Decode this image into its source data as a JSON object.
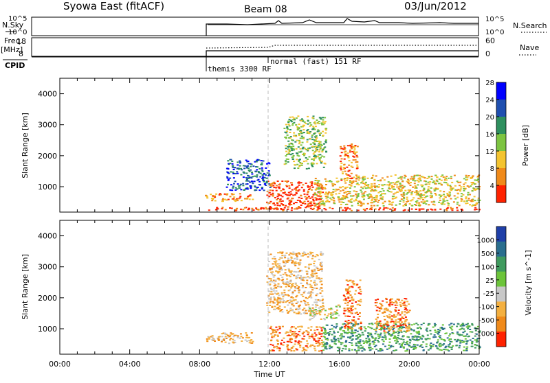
{
  "header": {
    "title": "Syowa East (fitACF)",
    "beam": "Beam 08",
    "date": "03/Jun/2012"
  },
  "status_panel": {
    "nsky_label": "N.Sky",
    "nsky_ticks": [
      "10^5",
      "10^0"
    ],
    "nsearch_label": "N.Search",
    "nsearch_ticks": [
      "10^5",
      "10^0"
    ],
    "freq_label": "Freq.",
    "freq_unit": "[MHz]",
    "freq_ticks": [
      "18",
      "8"
    ],
    "nave_label": "Nave",
    "nave_ticks": [
      "60",
      "0"
    ],
    "cpid_label": "CPID",
    "cpid_programs": [
      "themis 3300 RF",
      "normal (fast) 151 RF"
    ]
  },
  "chart_data": [
    {
      "type": "heatmap",
      "name": "power",
      "ylabel": "Slant Range [km]",
      "yticks": [
        "1000",
        "2000",
        "3000",
        "4000"
      ],
      "ylim": [
        180,
        4500
      ],
      "xlim": [
        0,
        24
      ],
      "colorbar_label": "Power [dB]",
      "colorbar_ticks": [
        "4",
        "8",
        "12",
        "16",
        "20",
        "24",
        "28"
      ],
      "colorbar_colors": [
        "#0000ff",
        "#1f4fb0",
        "#2e8f5e",
        "#7dc441",
        "#f4c430",
        "#f08a1a",
        "#ff2200"
      ],
      "regions": [
        {
          "x": [
            8.3,
            24
          ],
          "y": [
            250,
            350
          ],
          "level": 6
        },
        {
          "x": [
            8.3,
            11.0
          ],
          "y": [
            550,
            800
          ],
          "level": 5
        },
        {
          "x": [
            11.8,
            15.0
          ],
          "y": [
            300,
            1200
          ],
          "level": 6
        },
        {
          "x": [
            14.5,
            17.0
          ],
          "y": [
            400,
            1300
          ],
          "level": 4
        },
        {
          "x": [
            12.8,
            15.2
          ],
          "y": [
            1600,
            3300
          ],
          "level": 3
        },
        {
          "x": [
            16.0,
            17.0
          ],
          "y": [
            1200,
            2400
          ],
          "level": 5
        },
        {
          "x": [
            17.0,
            24.0
          ],
          "y": [
            400,
            1400
          ],
          "level": 4
        },
        {
          "x": [
            9.5,
            12.0
          ],
          "y": [
            900,
            1900
          ],
          "level": 1
        }
      ]
    },
    {
      "type": "heatmap",
      "name": "velocity",
      "xlabel": "Time UT",
      "xticks": [
        "00:00",
        "04:00",
        "08:00",
        "12:00",
        "16:00",
        "20:00",
        "00:00"
      ],
      "ylabel": "Slant Range [km]",
      "yticks": [
        "1000",
        "2000",
        "3000",
        "4000"
      ],
      "ylim": [
        180,
        4500
      ],
      "xlim": [
        0,
        24
      ],
      "colorbar_label": "Velocity [m s^-1]",
      "colorbar_ticks": [
        "1000",
        "500",
        "100",
        "25",
        "-25",
        "-100",
        "-500",
        "-1000"
      ],
      "colorbar_colors": [
        "#1f3fa8",
        "#2a6e8e",
        "#3f9a5e",
        "#6cc43a",
        "#c8c8c8",
        "#f4b040",
        "#f08a1a",
        "#ff2200"
      ],
      "regions": [
        {
          "x": [
            8.3,
            11.0
          ],
          "y": [
            550,
            900
          ],
          "level": 5
        },
        {
          "x": [
            11.8,
            15.0
          ],
          "y": [
            1500,
            3500
          ],
          "level": 5
        },
        {
          "x": [
            12.0,
            15.0
          ],
          "y": [
            300,
            1100
          ],
          "level": 6
        },
        {
          "x": [
            15.0,
            24.0
          ],
          "y": [
            300,
            1200
          ],
          "level": 2
        },
        {
          "x": [
            16.2,
            17.2
          ],
          "y": [
            1000,
            2600
          ],
          "level": 6
        },
        {
          "x": [
            18.0,
            20.0
          ],
          "y": [
            900,
            2000
          ],
          "level": 6
        },
        {
          "x": [
            14.2,
            16.0
          ],
          "y": [
            1300,
            1800
          ],
          "level": 4
        }
      ]
    }
  ]
}
